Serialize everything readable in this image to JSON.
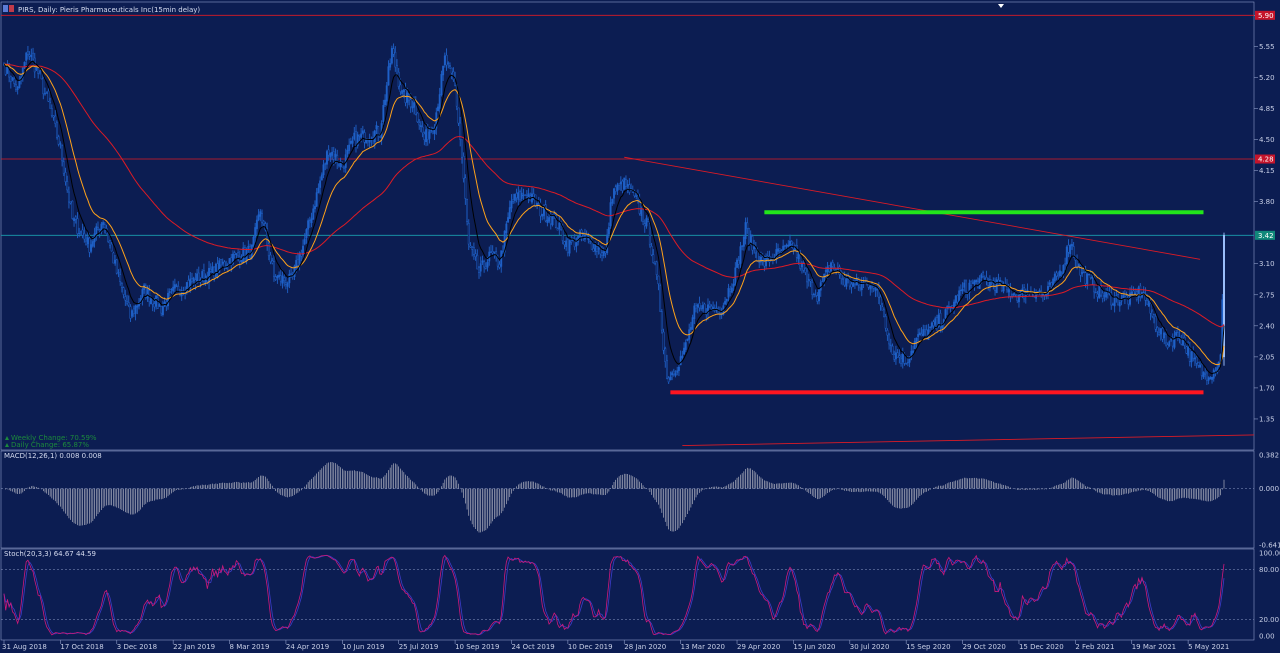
{
  "header": {
    "title": "PIRS, Daily:  Pieris Pharmaceuticals Inc(15min delay)"
  },
  "indicators": {
    "weekly_change": "Weekly Change: 70.59%",
    "daily_change": "Daily Change: 65.87%",
    "macd_label": "MACD(12,26,1) 0.008 0.008",
    "stoch_label": "Stoch(20,3,3) 64.67 44.59"
  },
  "colors": {
    "background": "#0c1d52",
    "grid": "#0f2360",
    "candle": "#1f61c8",
    "candle_highlight": "#9ec3ff",
    "ema_fast": "#000000",
    "ema_mid": "#ffa21a",
    "ema_slow": "#dd1b25",
    "support": "#ff1520",
    "resistance": "#22e51a",
    "trendline": "#dd1b25",
    "price_line": "#1aa0b0",
    "stoch_main": "#d0187a",
    "stoch_signal": "#3c3cc8",
    "macd_hist": "#c8c8d0"
  },
  "chart_data": {
    "type": "line",
    "instrument": "PIRS",
    "timeframe": "Daily",
    "price_axis": {
      "ticks": [
        "5.90",
        "5.55",
        "5.20",
        "4.85",
        "4.50",
        "4.15",
        "3.80",
        "3.10",
        "2.75",
        "2.40",
        "2.05",
        "1.70",
        "1.35"
      ],
      "tick_values": [
        5.9,
        5.55,
        5.2,
        4.85,
        4.5,
        4.15,
        3.8,
        3.1,
        2.75,
        2.4,
        2.05,
        1.7,
        1.35
      ],
      "range": [
        1.0,
        6.05
      ],
      "badges": [
        {
          "label": "5.90",
          "value": 5.9,
          "color": "#c4142b"
        },
        {
          "label": "4.28",
          "value": 4.28,
          "color": "#c4142b"
        },
        {
          "label": "3.42",
          "value": 3.42,
          "color": "#11887a"
        }
      ]
    },
    "x_axis": {
      "labels": [
        "31 Aug 2018",
        "17 Oct 2018",
        "3 Dec 2018",
        "22 Jan 2019",
        "8 Mar 2019",
        "24 Apr 2019",
        "10 Jun 2019",
        "25 Jul 2019",
        "10 Sep 2019",
        "24 Oct 2019",
        "10 Dec 2019",
        "28 Jan 2020",
        "13 Mar 2020",
        "29 Apr 2020",
        "15 Jun 2020",
        "30 Jul 2020",
        "15 Sep 2020",
        "29 Oct 2020",
        "15 Dec 2020",
        "2 Feb 2021",
        "19 Mar 2021",
        "5 May 2021"
      ],
      "bar_index": [
        0,
        33,
        66,
        99,
        132,
        165,
        198,
        231,
        264,
        297,
        330,
        363,
        396,
        429,
        462,
        495,
        528,
        561,
        594,
        627,
        660,
        693
      ]
    },
    "close_anchors": [
      {
        "i": 0,
        "v": 5.35
      },
      {
        "i": 8,
        "v": 5.05
      },
      {
        "i": 14,
        "v": 5.5
      },
      {
        "i": 20,
        "v": 5.25
      },
      {
        "i": 26,
        "v": 4.9
      },
      {
        "i": 33,
        "v": 4.4
      },
      {
        "i": 40,
        "v": 3.6
      },
      {
        "i": 50,
        "v": 3.3
      },
      {
        "i": 58,
        "v": 3.6
      },
      {
        "i": 66,
        "v": 3.0
      },
      {
        "i": 74,
        "v": 2.5
      },
      {
        "i": 82,
        "v": 2.8
      },
      {
        "i": 92,
        "v": 2.6
      },
      {
        "i": 100,
        "v": 2.8
      },
      {
        "i": 110,
        "v": 2.9
      },
      {
        "i": 122,
        "v": 3.0
      },
      {
        "i": 132,
        "v": 3.15
      },
      {
        "i": 145,
        "v": 3.25
      },
      {
        "i": 150,
        "v": 3.7
      },
      {
        "i": 158,
        "v": 2.95
      },
      {
        "i": 168,
        "v": 2.9
      },
      {
        "i": 175,
        "v": 3.3
      },
      {
        "i": 182,
        "v": 3.8
      },
      {
        "i": 190,
        "v": 4.4
      },
      {
        "i": 198,
        "v": 4.2
      },
      {
        "i": 205,
        "v": 4.5
      },
      {
        "i": 212,
        "v": 4.55
      },
      {
        "i": 220,
        "v": 4.6
      },
      {
        "i": 227,
        "v": 5.5
      },
      {
        "i": 233,
        "v": 5.0
      },
      {
        "i": 240,
        "v": 4.9
      },
      {
        "i": 246,
        "v": 4.5
      },
      {
        "i": 252,
        "v": 4.7
      },
      {
        "i": 258,
        "v": 5.4
      },
      {
        "i": 264,
        "v": 5.1
      },
      {
        "i": 268,
        "v": 4.3
      },
      {
        "i": 272,
        "v": 3.3
      },
      {
        "i": 278,
        "v": 3.0
      },
      {
        "i": 285,
        "v": 3.2
      },
      {
        "i": 290,
        "v": 3.1
      },
      {
        "i": 297,
        "v": 3.8
      },
      {
        "i": 306,
        "v": 3.9
      },
      {
        "i": 314,
        "v": 3.7
      },
      {
        "i": 322,
        "v": 3.6
      },
      {
        "i": 330,
        "v": 3.3
      },
      {
        "i": 338,
        "v": 3.4
      },
      {
        "i": 346,
        "v": 3.3
      },
      {
        "i": 352,
        "v": 3.2
      },
      {
        "i": 356,
        "v": 3.9
      },
      {
        "i": 363,
        "v": 4.0
      },
      {
        "i": 370,
        "v": 3.8
      },
      {
        "i": 377,
        "v": 3.5
      },
      {
        "i": 383,
        "v": 2.8
      },
      {
        "i": 388,
        "v": 1.8
      },
      {
        "i": 392,
        "v": 1.9
      },
      {
        "i": 398,
        "v": 2.1
      },
      {
        "i": 404,
        "v": 2.55
      },
      {
        "i": 412,
        "v": 2.6
      },
      {
        "i": 420,
        "v": 2.6
      },
      {
        "i": 428,
        "v": 3.0
      },
      {
        "i": 434,
        "v": 3.5
      },
      {
        "i": 438,
        "v": 3.3
      },
      {
        "i": 444,
        "v": 3.1
      },
      {
        "i": 452,
        "v": 3.2
      },
      {
        "i": 462,
        "v": 3.3
      },
      {
        "i": 470,
        "v": 2.9
      },
      {
        "i": 476,
        "v": 2.75
      },
      {
        "i": 484,
        "v": 3.1
      },
      {
        "i": 492,
        "v": 2.9
      },
      {
        "i": 500,
        "v": 2.85
      },
      {
        "i": 508,
        "v": 2.9
      },
      {
        "i": 514,
        "v": 2.6
      },
      {
        "i": 520,
        "v": 2.1
      },
      {
        "i": 528,
        "v": 2.0
      },
      {
        "i": 534,
        "v": 2.25
      },
      {
        "i": 542,
        "v": 2.35
      },
      {
        "i": 550,
        "v": 2.5
      },
      {
        "i": 561,
        "v": 2.8
      },
      {
        "i": 570,
        "v": 2.9
      },
      {
        "i": 578,
        "v": 2.9
      },
      {
        "i": 586,
        "v": 2.8
      },
      {
        "i": 594,
        "v": 2.75
      },
      {
        "i": 602,
        "v": 2.8
      },
      {
        "i": 610,
        "v": 2.75
      },
      {
        "i": 618,
        "v": 3.0
      },
      {
        "i": 624,
        "v": 3.35
      },
      {
        "i": 630,
        "v": 3.0
      },
      {
        "i": 636,
        "v": 2.9
      },
      {
        "i": 642,
        "v": 2.75
      },
      {
        "i": 650,
        "v": 2.7
      },
      {
        "i": 660,
        "v": 2.7
      },
      {
        "i": 666,
        "v": 2.8
      },
      {
        "i": 672,
        "v": 2.5
      },
      {
        "i": 680,
        "v": 2.2
      },
      {
        "i": 688,
        "v": 2.3
      },
      {
        "i": 696,
        "v": 2.0
      },
      {
        "i": 702,
        "v": 1.85
      },
      {
        "i": 708,
        "v": 1.9
      },
      {
        "i": 712,
        "v": 2.05
      },
      {
        "i": 714,
        "v": 3.42
      }
    ],
    "horizontal_lines": [
      {
        "value": 5.9,
        "color": "#dd1b25"
      },
      {
        "value": 4.28,
        "color": "#dd1b25"
      },
      {
        "value": 3.42,
        "color": "#1aa0b0"
      }
    ],
    "zones": {
      "resistance": {
        "value": 3.68,
        "from_i": 445,
        "to_i": 702
      },
      "support": {
        "value": 1.65,
        "from_i": 390,
        "to_i": 702
      }
    },
    "trendlines": [
      {
        "from": {
          "i": 363,
          "v": 4.3
        },
        "to": {
          "i": 700,
          "v": 3.15
        }
      },
      {
        "from": {
          "i": 397,
          "v": 1.05
        },
        "to": {
          "i": 714,
          "v": 1.17
        }
      }
    ],
    "macd": {
      "range": [
        -0.641,
        0.382
      ],
      "ticks": [
        "0.382",
        "0.000",
        "-0.641"
      ],
      "tick_values": [
        0.382,
        0.0,
        -0.641
      ]
    },
    "stoch": {
      "range": [
        0,
        100
      ],
      "ticks": [
        "100.00",
        "80.00",
        "20.00",
        "0.00"
      ],
      "tick_values": [
        100,
        80,
        20,
        0
      ],
      "levels": [
        80,
        20
      ]
    }
  }
}
